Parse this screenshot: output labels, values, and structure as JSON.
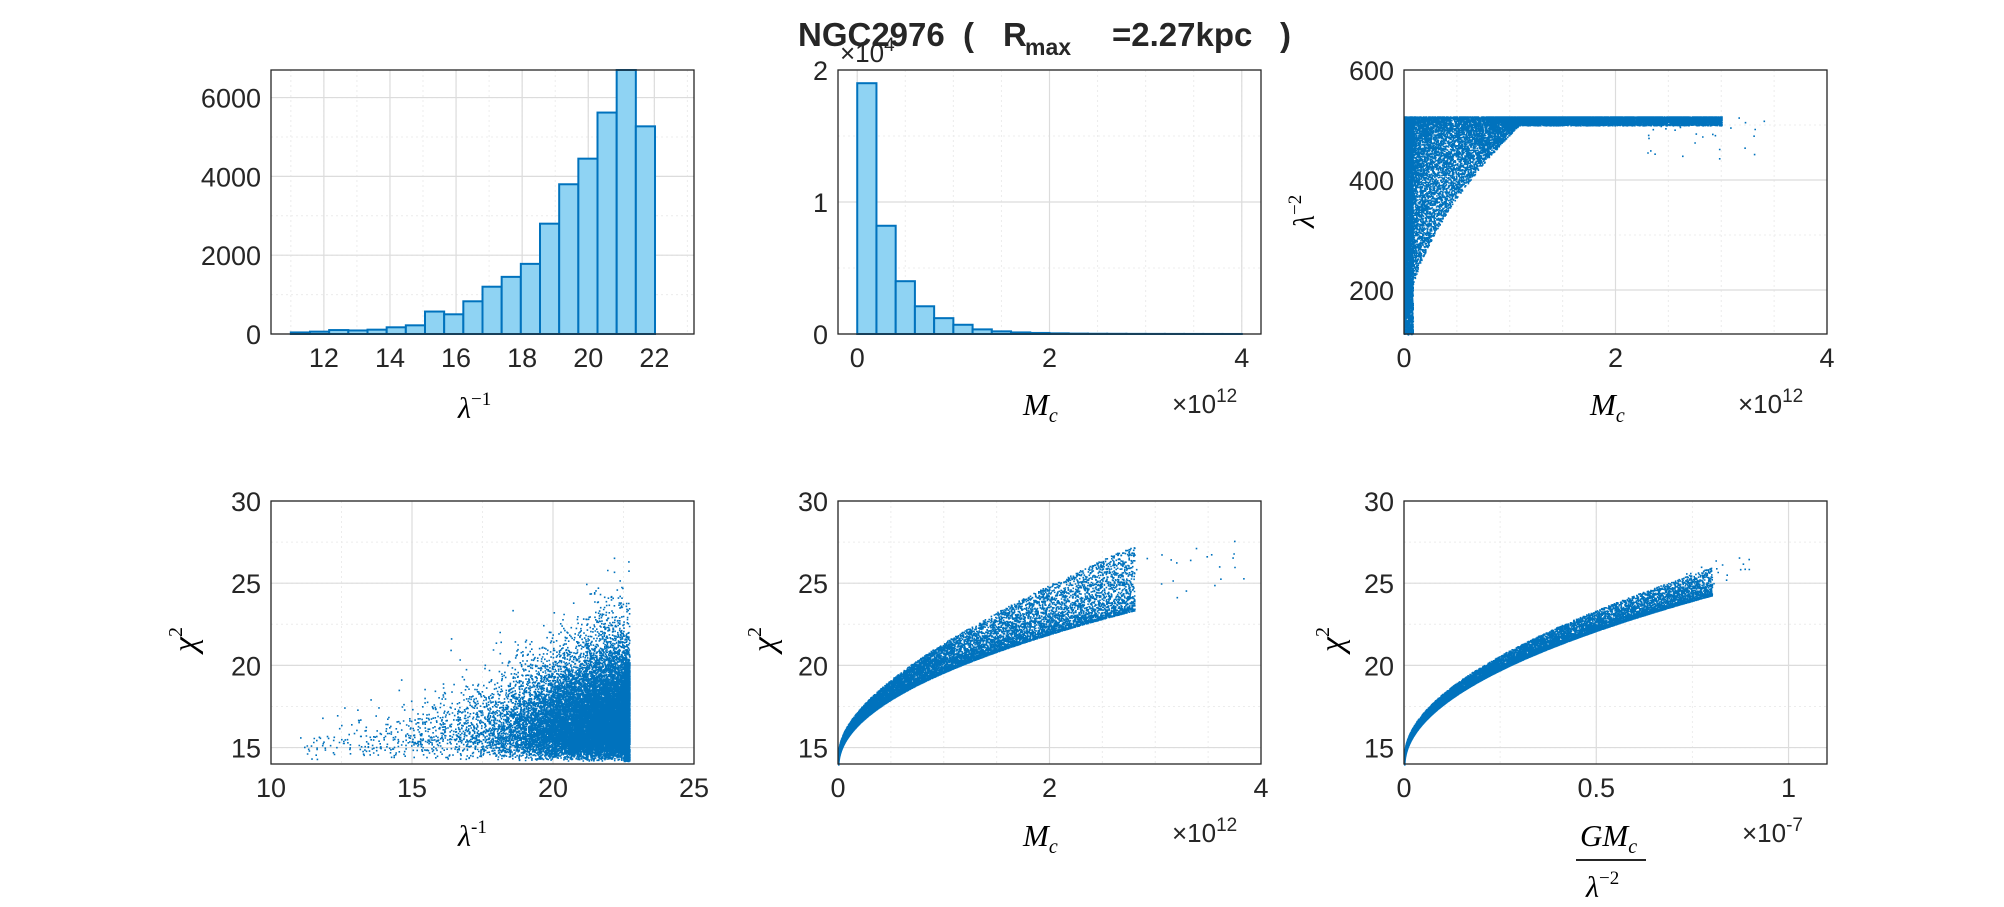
{
  "figure": {
    "title_main": "NGC2976",
    "title_r": "R",
    "title_sub": "max",
    "title_value": "=2.27kpc"
  },
  "colors": {
    "bar_fill": "#8fd3f3",
    "bar_edge": "#0072bd",
    "scatter": "#0072bd",
    "grid": "#dcdcdc",
    "axis": "#262626"
  },
  "chart_data": [
    {
      "type": "bar",
      "panel": "top-left histogram",
      "xlabel": "λ^-1",
      "bin_edges": [
        11,
        11.58,
        12.16,
        12.74,
        13.32,
        13.9,
        14.48,
        15.06,
        15.64,
        16.22,
        16.8,
        17.38,
        17.96,
        18.54,
        19.12,
        19.7,
        20.28,
        20.86,
        21.44,
        22.02,
        22.6
      ],
      "values": [
        40,
        60,
        100,
        90,
        110,
        170,
        220,
        570,
        500,
        830,
        1200,
        1450,
        1780,
        2800,
        3800,
        4450,
        5620,
        6700,
        5270,
        0
      ],
      "xlim": [
        10.4,
        23.2
      ],
      "ylim": [
        0,
        6700
      ],
      "xticks": [
        12,
        14,
        16,
        18,
        20,
        22
      ],
      "yticks": [
        0,
        2000,
        4000,
        6000
      ]
    },
    {
      "type": "bar",
      "panel": "top-middle histogram",
      "xlabel": "M_c",
      "x_multiplier": "×10^12",
      "y_multiplier": "×10^4",
      "bin_edges": [
        0,
        0.2,
        0.4,
        0.6,
        0.8,
        1.0,
        1.2,
        1.4,
        1.6,
        1.8,
        2.0,
        2.2,
        2.4,
        2.6,
        2.8,
        3.0,
        3.2,
        3.4,
        3.6,
        3.8,
        4.0
      ],
      "values": [
        1.9,
        0.82,
        0.4,
        0.21,
        0.12,
        0.07,
        0.035,
        0.02,
        0.012,
        0.008,
        0.005,
        0.003,
        0.002,
        0.0015,
        0.001,
        0.0008,
        0.0006,
        0.0004,
        0.0003,
        0.0002
      ],
      "xlim": [
        -0.2,
        4.2
      ],
      "ylim": [
        0,
        2
      ],
      "xticks": [
        0,
        2,
        4
      ],
      "yticks": [
        0,
        1,
        2
      ]
    },
    {
      "type": "scatter",
      "panel": "top-right scatter",
      "xlabel": "M_c",
      "ylabel": "λ^-2",
      "x_multiplier": "×10^12",
      "xlim": [
        0,
        4
      ],
      "ylim": [
        120,
        600
      ],
      "xticks": [
        0,
        2,
        4
      ],
      "yticks": [
        200,
        400,
        600
      ],
      "description_of_points": "dense cloud: λ^-2 from ~120 to ~516, capped at 516; spread grows with M_c up to ~3.3e12"
    },
    {
      "type": "scatter",
      "panel": "bottom-left scatter",
      "xlabel": "λ^-1",
      "ylabel": "χ^2",
      "xlim": [
        10,
        25
      ],
      "ylim": [
        14,
        30
      ],
      "xticks": [
        10,
        15,
        20,
        25
      ],
      "yticks": [
        15,
        20,
        25,
        30
      ],
      "description_of_points": "λ^-1 from ~11 to 22.7 (dense near 22.7); χ^2 from 14 to ~28"
    },
    {
      "type": "scatter",
      "panel": "bottom-middle scatter",
      "xlabel": "M_c",
      "ylabel": "χ^2",
      "x_multiplier": "×10^12",
      "xlim": [
        0,
        4
      ],
      "ylim": [
        14,
        30
      ],
      "xticks": [
        0,
        2,
        4
      ],
      "yticks": [
        15,
        20,
        25,
        30
      ],
      "description_of_points": "lower envelope χ^2 ≈ 14 + 5.6*sqrt(M_c/1e12), band widening up to ~27 near 3.9e12"
    },
    {
      "type": "scatter",
      "panel": "bottom-right scatter",
      "xlabel": "GM_c / λ^-2",
      "ylabel": "χ^2",
      "x_multiplier": "×10^-7",
      "xlim": [
        0,
        1.1
      ],
      "ylim": [
        14,
        30
      ],
      "xticks": [
        0,
        0.5,
        1
      ],
      "yticks": [
        15,
        20,
        25,
        30
      ],
      "description_of_points": "tight band χ^2 ≈ 14 + 11.5*sqrt(x/1e-7), reaching ~27 near 0.85e-7"
    }
  ]
}
